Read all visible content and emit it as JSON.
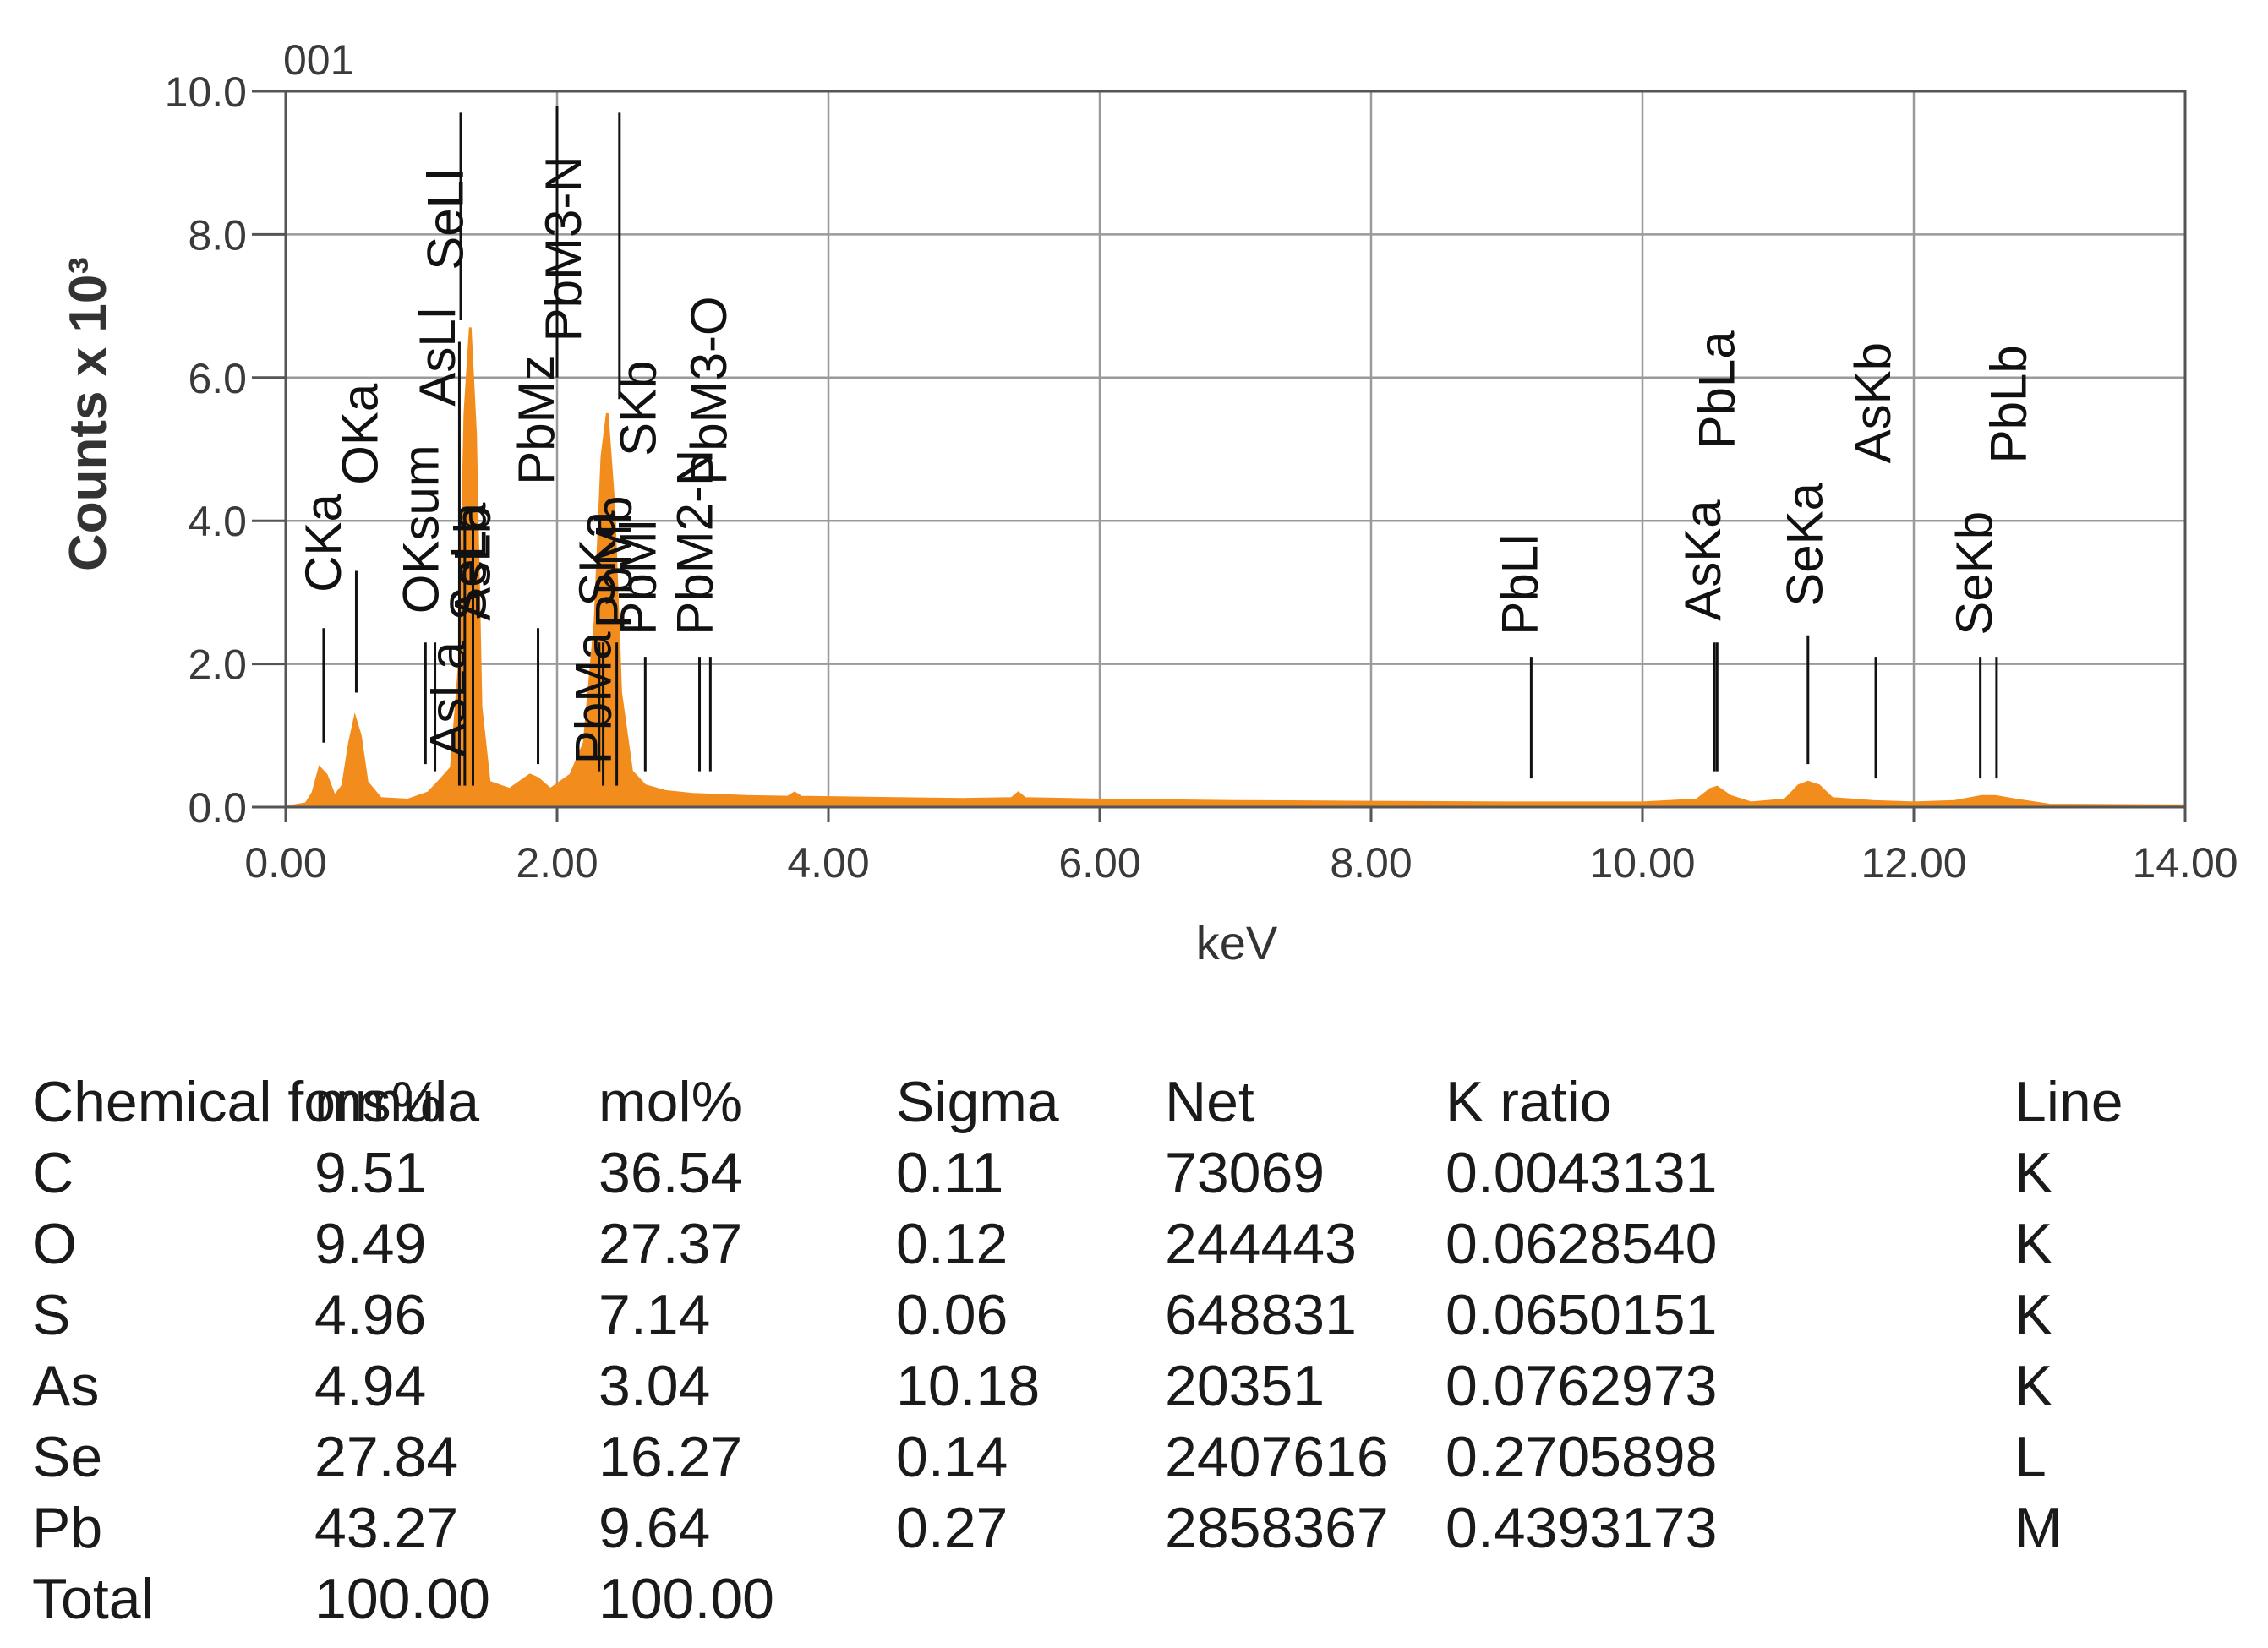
{
  "chart_data": {
    "type": "area",
    "title": "001",
    "xlabel": "keV",
    "ylabel": "Counts x 10³",
    "xlim": [
      0,
      14
    ],
    "ylim": [
      0,
      10
    ],
    "x_ticks": [
      "0.00",
      "2.00",
      "4.00",
      "6.00",
      "8.00",
      "10.00",
      "12.00",
      "14.00"
    ],
    "y_ticks": [
      "0.0",
      "2.0",
      "4.0",
      "6.0",
      "8.0",
      "10.0"
    ],
    "grid": true,
    "fill_color": "#f28c1c",
    "spectrum": [
      [
        0.0,
        0.0
      ],
      [
        0.15,
        0.05
      ],
      [
        0.2,
        0.2
      ],
      [
        0.25,
        0.55
      ],
      [
        0.3,
        0.45
      ],
      [
        0.36,
        0.15
      ],
      [
        0.42,
        0.3
      ],
      [
        0.47,
        0.9
      ],
      [
        0.51,
        1.25
      ],
      [
        0.55,
        1.0
      ],
      [
        0.6,
        0.35
      ],
      [
        0.7,
        0.12
      ],
      [
        0.9,
        0.1
      ],
      [
        1.05,
        0.2
      ],
      [
        1.15,
        0.4
      ],
      [
        1.22,
        0.55
      ],
      [
        1.28,
        2.0
      ],
      [
        1.32,
        5.5
      ],
      [
        1.36,
        6.7
      ],
      [
        1.4,
        5.2
      ],
      [
        1.44,
        1.4
      ],
      [
        1.5,
        0.35
      ],
      [
        1.65,
        0.25
      ],
      [
        1.8,
        0.45
      ],
      [
        1.86,
        0.4
      ],
      [
        1.95,
        0.25
      ],
      [
        2.1,
        0.45
      ],
      [
        2.2,
        0.9
      ],
      [
        2.28,
        2.6
      ],
      [
        2.33,
        4.9
      ],
      [
        2.37,
        5.5
      ],
      [
        2.42,
        4.2
      ],
      [
        2.47,
        1.6
      ],
      [
        2.55,
        0.5
      ],
      [
        2.65,
        0.3
      ],
      [
        2.8,
        0.22
      ],
      [
        3.0,
        0.18
      ],
      [
        3.4,
        0.15
      ],
      [
        3.7,
        0.14
      ],
      [
        3.75,
        0.2
      ],
      [
        3.8,
        0.14
      ],
      [
        4.5,
        0.12
      ],
      [
        5.0,
        0.11
      ],
      [
        5.35,
        0.12
      ],
      [
        5.4,
        0.2
      ],
      [
        5.45,
        0.12
      ],
      [
        6.0,
        0.1
      ],
      [
        7.0,
        0.08
      ],
      [
        8.0,
        0.07
      ],
      [
        9.0,
        0.06
      ],
      [
        10.0,
        0.06
      ],
      [
        10.4,
        0.1
      ],
      [
        10.5,
        0.25
      ],
      [
        10.55,
        0.28
      ],
      [
        10.65,
        0.15
      ],
      [
        10.8,
        0.06
      ],
      [
        11.05,
        0.1
      ],
      [
        11.15,
        0.3
      ],
      [
        11.22,
        0.35
      ],
      [
        11.3,
        0.3
      ],
      [
        11.4,
        0.12
      ],
      [
        11.7,
        0.08
      ],
      [
        12.0,
        0.06
      ],
      [
        12.3,
        0.08
      ],
      [
        12.5,
        0.15
      ],
      [
        12.6,
        0.15
      ],
      [
        12.75,
        0.1
      ],
      [
        13.0,
        0.03
      ],
      [
        14.0,
        0.02
      ]
    ],
    "peak_markers": [
      {
        "label": "CKa",
        "kev": 0.28,
        "bottom": 0.9,
        "top": 2.5
      },
      {
        "label": "OKa",
        "kev": 0.52,
        "bottom": 1.6,
        "top": 3.3
      },
      {
        "label": "OKsum",
        "kev": 1.03,
        "bottom": 0.6,
        "top": 2.3
      },
      {
        "label": "AsL",
        "kev": 1.1,
        "bottom": 0.5,
        "top": 2.3
      },
      {
        "label": "AsLa",
        "kev": 1.28,
        "bottom": 0.3,
        "top": 6.5
      },
      {
        "label": "SeLa",
        "kev": 1.38,
        "bottom": 0.3,
        "top": 4.0
      },
      {
        "label": "AsLb",
        "kev": 1.32,
        "bottom": 0.3,
        "top": 4.0
      },
      {
        "label": "SeLl",
        "kev": 1.29,
        "bottom": 6.8,
        "top": 9.7
      },
      {
        "label": "PbMz",
        "kev": 1.86,
        "bottom": 0.6,
        "top": 2.5
      },
      {
        "label": "SKa",
        "kev": 2.31,
        "bottom": 0.5,
        "top": 2.3
      },
      {
        "label": "PbMa",
        "kev": 2.34,
        "bottom": 0.3,
        "top": 2.3
      },
      {
        "label": "PbMb",
        "kev": 2.44,
        "bottom": 0.3,
        "top": 2.3
      },
      {
        "label": "SKb",
        "kev": 2.46,
        "bottom": 5.7,
        "top": 9.7
      },
      {
        "label": "PbM3-N",
        "kev": 2.0,
        "bottom": 6.0,
        "top": 9.8
      },
      {
        "label": "PbMl",
        "kev": 2.65,
        "bottom": 0.5,
        "top": 2.1
      },
      {
        "label": "PbM2-N",
        "kev": 3.05,
        "bottom": 0.5,
        "top": 2.1
      },
      {
        "label": "PbM3-O",
        "kev": 3.13,
        "bottom": 0.5,
        "top": 2.1
      },
      {
        "label": "PbLl",
        "kev": 9.18,
        "bottom": 0.4,
        "top": 2.1
      },
      {
        "label": "AsKa",
        "kev": 10.53,
        "bottom": 0.5,
        "top": 2.3
      },
      {
        "label": "PbLa",
        "kev": 10.55,
        "bottom": 0.5,
        "top": 2.3
      },
      {
        "label": "SeKa",
        "kev": 11.22,
        "bottom": 0.6,
        "top": 2.4
      },
      {
        "label": "AsKb",
        "kev": 11.72,
        "bottom": 0.4,
        "top": 2.1
      },
      {
        "label": "SeKb",
        "kev": 12.49,
        "bottom": 0.4,
        "top": 2.1
      },
      {
        "label": "PbLb",
        "kev": 12.61,
        "bottom": 0.4,
        "top": 2.1
      }
    ],
    "peak_labels": [
      {
        "text": "CKa",
        "kev": 0.28,
        "base": 3.0
      },
      {
        "text": "OKa",
        "kev": 0.55,
        "base": 4.5
      },
      {
        "text": "OKsum",
        "kev": 1.0,
        "base": 2.7
      },
      {
        "text": "AsLl",
        "kev": 1.12,
        "base": 5.6
      },
      {
        "text": "SeLl",
        "kev": 1.18,
        "base": 7.5
      },
      {
        "text": "AsLa",
        "kev": 1.2,
        "base": 0.7
      },
      {
        "text": "SeLa",
        "kev": 1.35,
        "base": 2.6
      },
      {
        "text": "AsLb",
        "kev": 1.38,
        "base": 2.6
      },
      {
        "text": "PbMz",
        "kev": 1.85,
        "base": 4.5
      },
      {
        "text": "PbM3-N",
        "kev": 2.05,
        "base": 6.5
      },
      {
        "text": "PbMa",
        "kev": 2.27,
        "base": 0.6
      },
      {
        "text": "SKa",
        "kev": 2.3,
        "base": 2.8
      },
      {
        "text": "PbMb",
        "kev": 2.42,
        "base": 2.5
      },
      {
        "text": "SKb",
        "kev": 2.6,
        "base": 4.9
      },
      {
        "text": "PbMl",
        "kev": 2.6,
        "base": 2.4
      },
      {
        "text": "PbM2-N",
        "kev": 3.02,
        "base": 2.4
      },
      {
        "text": "PbM3-O",
        "kev": 3.12,
        "base": 4.5
      },
      {
        "text": "PbLl",
        "kev": 9.1,
        "base": 2.4
      },
      {
        "text": "AsKa",
        "kev": 10.45,
        "base": 2.6
      },
      {
        "text": "PbLa",
        "kev": 10.55,
        "base": 5.0
      },
      {
        "text": "SeKa",
        "kev": 11.2,
        "base": 2.8
      },
      {
        "text": "AsKb",
        "kev": 11.7,
        "base": 4.8
      },
      {
        "text": "SeKb",
        "kev": 12.45,
        "base": 2.4
      },
      {
        "text": "PbLb",
        "kev": 12.7,
        "base": 4.8
      }
    ]
  },
  "table": {
    "headers": [
      "Chemical formula",
      "ms%",
      "mol%",
      "Sigma",
      "Net",
      "K ratio",
      "Line"
    ],
    "rows": [
      [
        "C",
        "9.51",
        "36.54",
        "0.11",
        "73069",
        "0.0043131",
        "K"
      ],
      [
        "O",
        "9.49",
        "27.37",
        "0.12",
        "244443",
        "0.0628540",
        "K"
      ],
      [
        "S",
        "4.96",
        "7.14",
        "0.06",
        "648831",
        "0.0650151",
        "K"
      ],
      [
        "As",
        "4.94",
        "3.04",
        "10.18",
        "20351",
        "0.0762973",
        "K"
      ],
      [
        "Se",
        "27.84",
        "16.27",
        "0.14",
        "2407616",
        "0.2705898",
        "L"
      ],
      [
        "Pb",
        "43.27",
        "9.64",
        "0.27",
        "2858367",
        "0.4393173",
        "M"
      ],
      [
        "Total",
        "100.00",
        "100.00",
        "",
        "",
        "",
        ""
      ]
    ]
  }
}
